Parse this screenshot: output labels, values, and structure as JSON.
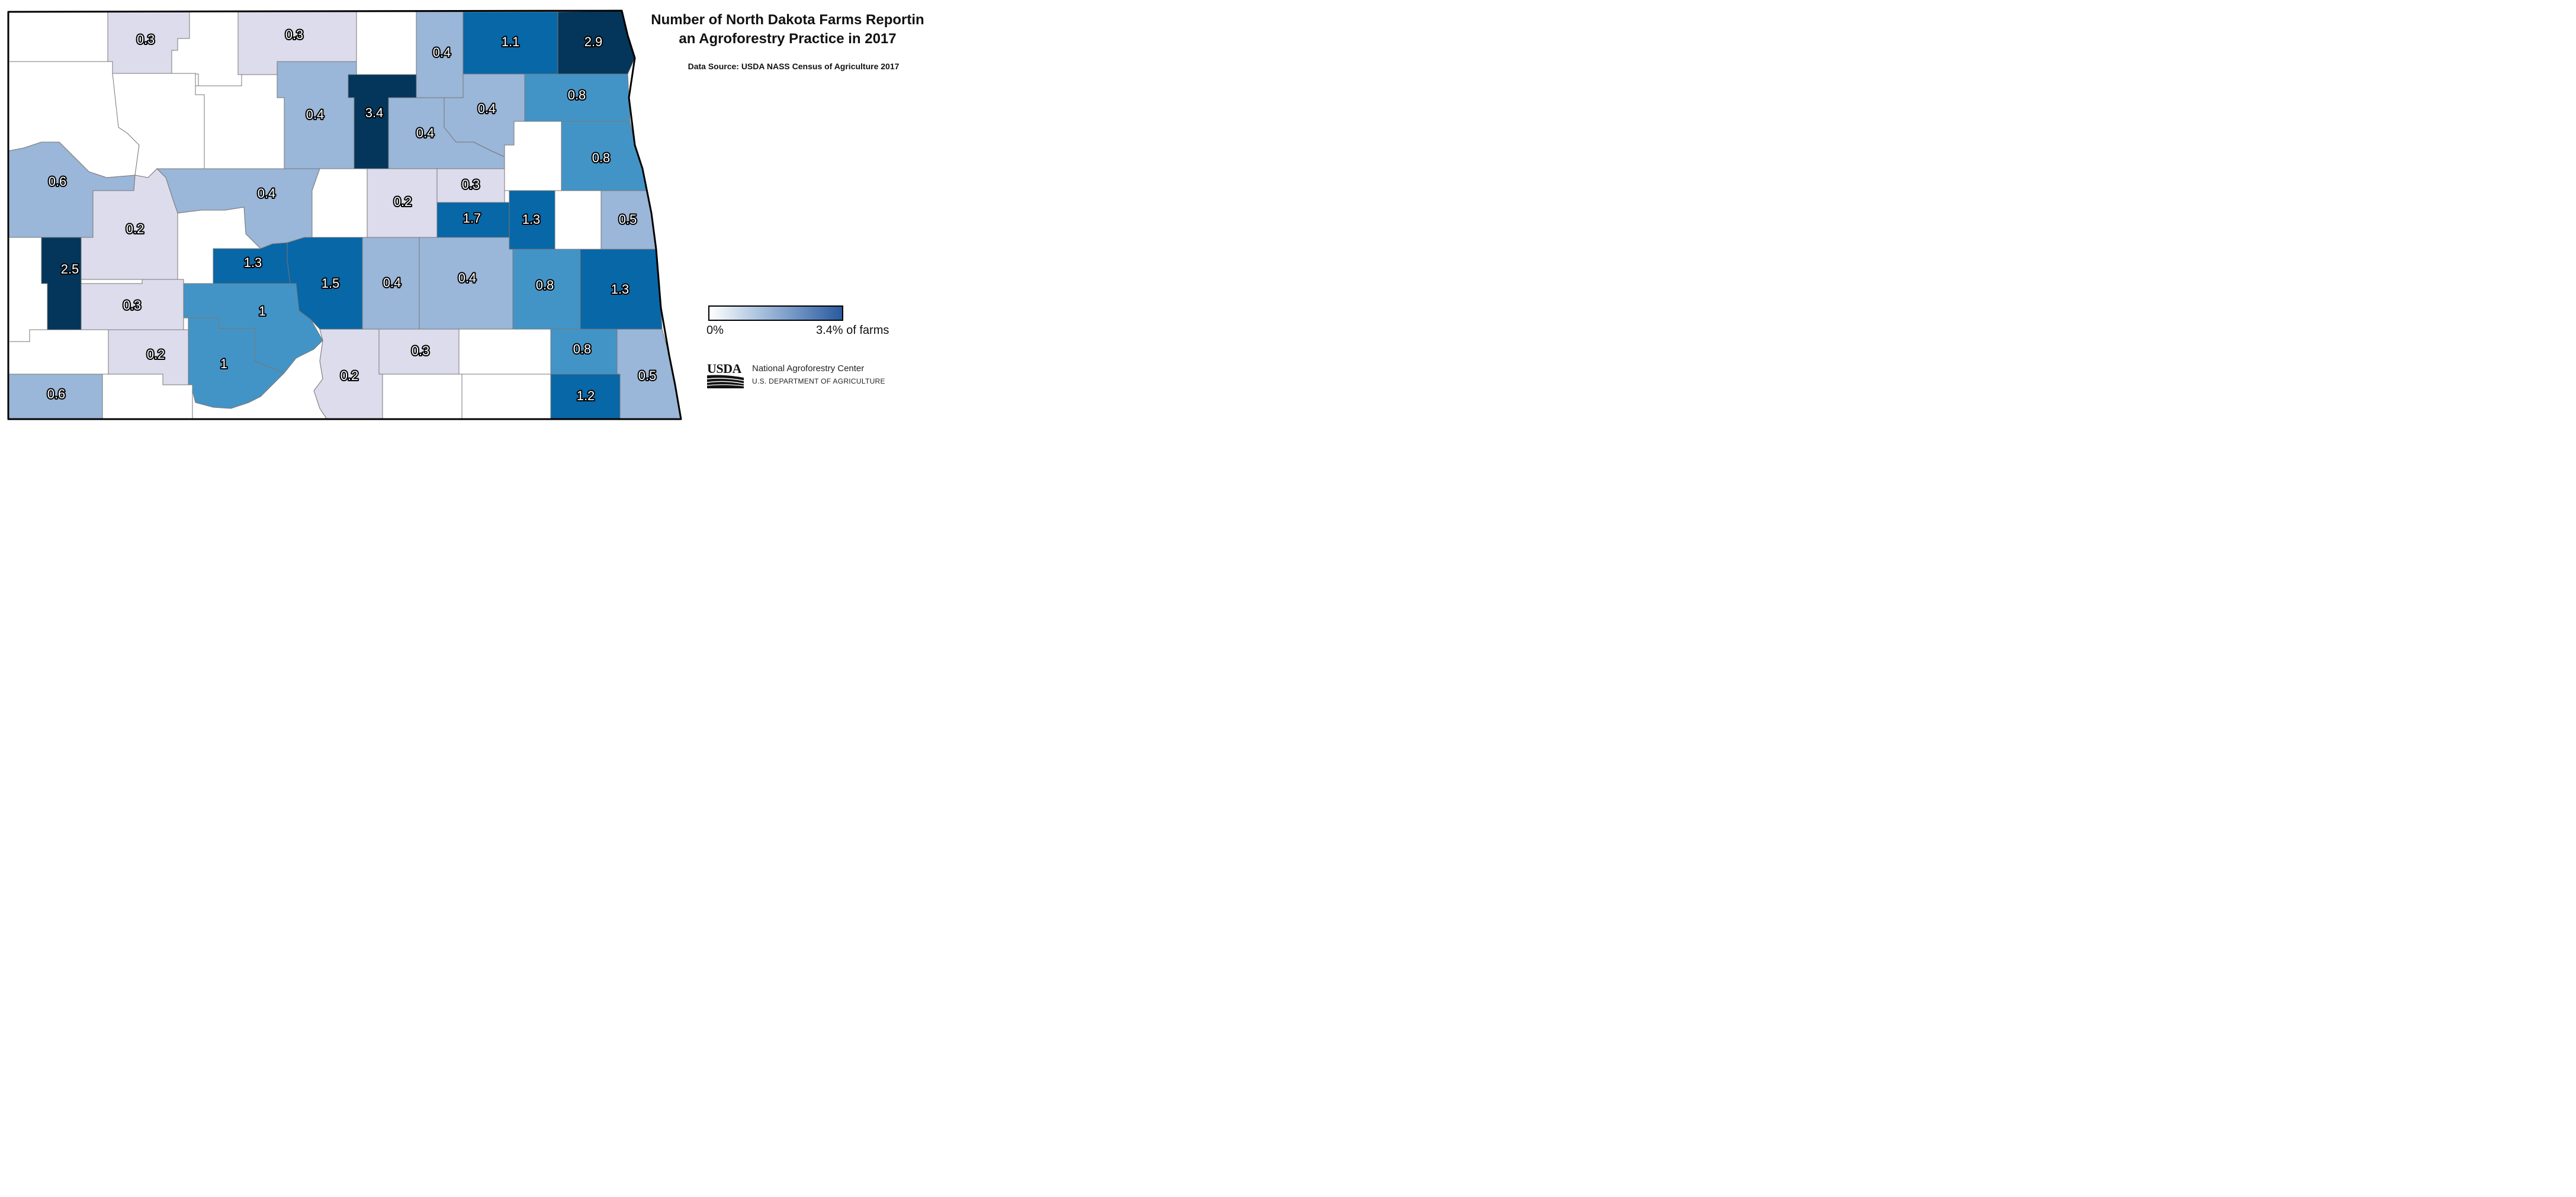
{
  "title": "Number of North Dakota Farms Reportin an Agroforestry Practice in 2017",
  "title_line1": "Number of North Dakota Farms Reportin",
  "title_line2": "an Agroforestry Practice in 2017",
  "source": "Data Source: USDA NASS Census of Agriculture 2017",
  "legend": {
    "min_label": "0%",
    "max_label": "3.4% of farms",
    "min": 0,
    "max": 3.4
  },
  "credit": {
    "logo_text": "USDA",
    "line1": "National Agroforestry Center",
    "line2": "U.S. DEPARTMENT OF AGRICULTURE"
  },
  "colors": {
    "c0": "#ffffff",
    "c1": "#dcdcec",
    "c2": "#9ab6d8",
    "c3": "#4394c6",
    "c4": "#0867a6",
    "c5": "#03365a",
    "border": "#777777",
    "outline": "#000000"
  },
  "chart_data": {
    "type": "choropleth",
    "units": "% of farms",
    "counties": [
      {
        "id": "divide",
        "value": null
      },
      {
        "id": "burke",
        "value": 0.3
      },
      {
        "id": "renville",
        "value": null
      },
      {
        "id": "bottineau",
        "value": 0.3
      },
      {
        "id": "rolette",
        "value": null
      },
      {
        "id": "towner",
        "value": 0.4
      },
      {
        "id": "cavalier",
        "value": 1.1
      },
      {
        "id": "pembina",
        "value": 2.9
      },
      {
        "id": "williams",
        "value": null
      },
      {
        "id": "mountrail",
        "value": null
      },
      {
        "id": "ward",
        "value": null
      },
      {
        "id": "mchenry",
        "value": 0.4
      },
      {
        "id": "pierce",
        "value": 3.4
      },
      {
        "id": "benson",
        "value": 0.4
      },
      {
        "id": "ramsey",
        "value": 0.4
      },
      {
        "id": "walsh",
        "value": 0.8
      },
      {
        "id": "nelson",
        "value": null
      },
      {
        "id": "grand-forks",
        "value": 0.8
      },
      {
        "id": "mckenzie",
        "value": 0.6
      },
      {
        "id": "mclean",
        "value": 0.4
      },
      {
        "id": "sheridan",
        "value": null
      },
      {
        "id": "wells",
        "value": 0.2
      },
      {
        "id": "eddy",
        "value": 0.3
      },
      {
        "id": "foster",
        "value": 1.7
      },
      {
        "id": "griggs",
        "value": 1.3
      },
      {
        "id": "steele",
        "value": null
      },
      {
        "id": "traill",
        "value": 0.5
      },
      {
        "id": "dunn",
        "value": 0.2
      },
      {
        "id": "mercer",
        "value": null
      },
      {
        "id": "golden-valley",
        "value": 2.5
      },
      {
        "id": "billings",
        "value": null
      },
      {
        "id": "oliver",
        "value": 1.3
      },
      {
        "id": "burleigh",
        "value": 1.5
      },
      {
        "id": "kidder",
        "value": 0.4
      },
      {
        "id": "stutsman",
        "value": 0.4
      },
      {
        "id": "barnes",
        "value": 0.8
      },
      {
        "id": "cass",
        "value": 1.3
      },
      {
        "id": "stark",
        "value": 0.3
      },
      {
        "id": "morton",
        "value": 1
      },
      {
        "id": "slope",
        "value": null
      },
      {
        "id": "hettinger",
        "value": 0.2
      },
      {
        "id": "grant",
        "value": 1
      },
      {
        "id": "emmons",
        "value": 0.2
      },
      {
        "id": "logan",
        "value": 0.3
      },
      {
        "id": "lamoure",
        "value": null
      },
      {
        "id": "ransom",
        "value": 0.8
      },
      {
        "id": "richland",
        "value": 0.5
      },
      {
        "id": "bowman",
        "value": 0.6
      },
      {
        "id": "adams",
        "value": null
      },
      {
        "id": "sioux",
        "value": null
      },
      {
        "id": "mcintosh",
        "value": null
      },
      {
        "id": "dickey",
        "value": null
      },
      {
        "id": "sargent",
        "value": 1.2
      }
    ]
  }
}
